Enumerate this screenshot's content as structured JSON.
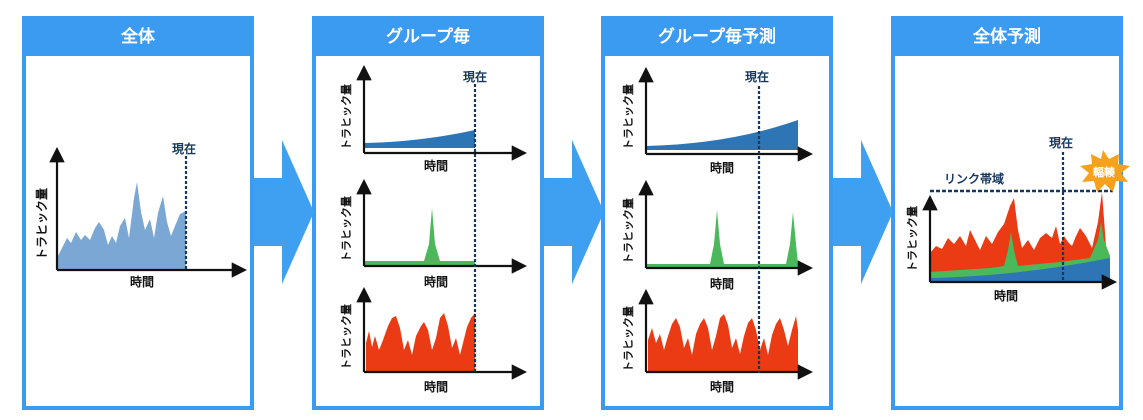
{
  "panels": [
    {
      "title": "全体"
    },
    {
      "title": "グループ毎"
    },
    {
      "title": "グループ毎予測"
    },
    {
      "title": "全体予測"
    }
  ],
  "labels": {
    "y_axis": "トラヒック量",
    "x_axis": "時間",
    "now": "現在",
    "link_bandwidth": "リンク帯域",
    "congestion": "輻輳"
  },
  "colors": {
    "frame": "#3b9bf0",
    "arrow": "#3fa0f2",
    "total": "#7aa7d4",
    "blue_group": "#2e75b6",
    "green_group": "#4cb85c",
    "red_group": "#ea3b14",
    "dotted": "#17375e",
    "burst": "#f4a21c"
  }
}
